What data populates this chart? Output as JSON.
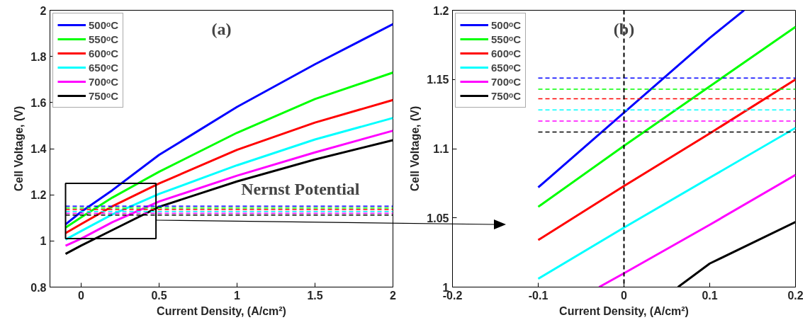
{
  "chart_data": [
    {
      "type": "line",
      "xlabel": "Current Density, (A/cm²)",
      "ylabel": "Cell Voltage, (V)",
      "annotations": [
        "(a)",
        "Nernst Potential"
      ],
      "xlim": [
        -0.2,
        2
      ],
      "ylim": [
        0.8,
        2
      ],
      "xticks": [
        0,
        0.5,
        1,
        1.5,
        2
      ],
      "yticks": [
        0.8,
        1,
        1.2,
        1.4,
        1.6,
        1.8,
        2
      ],
      "grid": false,
      "legend": "top left",
      "line_style": "solid",
      "x": [
        -0.1,
        0,
        0.2,
        0.5,
        1,
        1.5,
        2
      ],
      "series": [
        {
          "name": "500ᵒC",
          "color": "#0000ff",
          "values": [
            1.072,
            1.126,
            1.22,
            1.373,
            1.581,
            1.766,
            1.94
          ]
        },
        {
          "name": "550ᵒC",
          "color": "#00ff00",
          "values": [
            1.058,
            1.102,
            1.188,
            1.3,
            1.469,
            1.615,
            1.73
          ]
        },
        {
          "name": "600ᵒC",
          "color": "#ff0000",
          "values": [
            1.034,
            1.073,
            1.15,
            1.249,
            1.395,
            1.513,
            1.611
          ]
        },
        {
          "name": "650ᵒC",
          "color": "#00ffff",
          "values": [
            1.006,
            1.043,
            1.115,
            1.204,
            1.328,
            1.44,
            1.533
          ]
        },
        {
          "name": "700ᵒC",
          "color": "#ff00ff",
          "values": [
            0.979,
            1.01,
            1.081,
            1.171,
            1.283,
            1.384,
            1.478
          ]
        },
        {
          "name": "750ᵒC",
          "color": "#000000",
          "values": [
            0.944,
            0.98,
            1.047,
            1.148,
            1.258,
            1.353,
            1.437
          ]
        },
        {
          "color": "#0000ff",
          "line_style": "dashed",
          "x": [
            -0.1,
            2
          ],
          "values": [
            1.151,
            1.151
          ]
        },
        {
          "color": "#00ff00",
          "line_style": "dashed",
          "x": [
            -0.1,
            2
          ],
          "values": [
            1.143,
            1.143
          ]
        },
        {
          "color": "#ff0000",
          "line_style": "dashed",
          "x": [
            -0.1,
            2
          ],
          "values": [
            1.136,
            1.136
          ]
        },
        {
          "color": "#00ffff",
          "line_style": "dashed",
          "x": [
            -0.1,
            2
          ],
          "values": [
            1.128,
            1.128
          ]
        },
        {
          "color": "#ff00ff",
          "line_style": "dashed",
          "x": [
            -0.1,
            2
          ],
          "values": [
            1.12,
            1.12
          ]
        },
        {
          "color": "#000000",
          "line_style": "dashed",
          "x": [
            -0.1,
            2
          ],
          "values": [
            1.112,
            1.112
          ]
        }
      ]
    },
    {
      "type": "line",
      "xlabel": "Current Density, (A/cm²)",
      "ylabel": "Cell Voltage, (V)",
      "annotations": [
        "(b)"
      ],
      "xlim": [
        -0.2,
        0.2
      ],
      "ylim": [
        1,
        1.2
      ],
      "xticks": [
        -0.2,
        -0.1,
        0,
        0.1,
        0.2
      ],
      "yticks": [
        1,
        1.05,
        1.1,
        1.15,
        1.2
      ],
      "grid": false,
      "legend": "top left",
      "line_style": "solid",
      "ref_lines": [
        {
          "axis": "x",
          "value": 0,
          "color": "#000000",
          "line_style": "dashed"
        }
      ],
      "x": [
        -0.1,
        0,
        0.1,
        0.2
      ],
      "series": [
        {
          "name": "500ᵒC",
          "color": "#0000ff",
          "x": [
            -0.1,
            0,
            0.1,
            0.14
          ],
          "values": [
            1.072,
            1.126,
            1.18,
            1.2
          ]
        },
        {
          "name": "550ᵒC",
          "color": "#00ff00",
          "values": [
            1.058,
            1.102,
            1.145,
            1.188
          ]
        },
        {
          "name": "600ᵒC",
          "color": "#ff0000",
          "values": [
            1.034,
            1.073,
            1.111,
            1.15
          ]
        },
        {
          "name": "650ᵒC",
          "color": "#00ffff",
          "values": [
            1.006,
            1.043,
            1.079,
            1.115
          ]
        },
        {
          "name": "700ᵒC",
          "color": "#ff00ff",
          "x": [
            -0.029,
            0,
            0.1,
            0.2
          ],
          "values": [
            1,
            1.01,
            1.045,
            1.081
          ]
        },
        {
          "name": "750ᵒC",
          "color": "#000000",
          "x": [
            0.063,
            0.1,
            0.2
          ],
          "values": [
            1,
            1.017,
            1.047
          ]
        },
        {
          "color": "#0000ff",
          "line_style": "dashed",
          "x": [
            -0.1,
            0.2
          ],
          "values": [
            1.151,
            1.151
          ]
        },
        {
          "color": "#00ff00",
          "line_style": "dashed",
          "x": [
            -0.1,
            0.2
          ],
          "values": [
            1.143,
            1.143
          ]
        },
        {
          "color": "#ff0000",
          "line_style": "dashed",
          "x": [
            -0.1,
            0.2
          ],
          "values": [
            1.136,
            1.136
          ]
        },
        {
          "color": "#00ffff",
          "line_style": "dashed",
          "x": [
            -0.1,
            0.2
          ],
          "values": [
            1.128,
            1.128
          ]
        },
        {
          "color": "#ff00ff",
          "line_style": "dashed",
          "x": [
            -0.1,
            0.2
          ],
          "values": [
            1.12,
            1.12
          ]
        },
        {
          "color": "#000000",
          "line_style": "dashed",
          "x": [
            -0.1,
            0.2
          ],
          "values": [
            1.112,
            1.112
          ]
        }
      ]
    }
  ]
}
